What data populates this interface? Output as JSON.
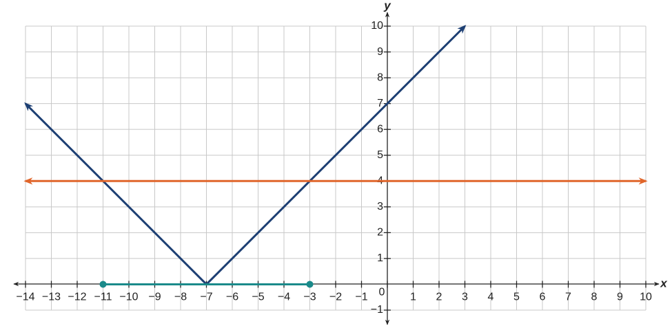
{
  "chart_data": {
    "type": "line",
    "x_label": "x",
    "y_label": "y",
    "xlim": [
      -14,
      10
    ],
    "ylim": [
      -1,
      10
    ],
    "xticks": [
      {
        "value": -14,
        "label": "−14"
      },
      {
        "value": -13,
        "label": "−13"
      },
      {
        "value": -12,
        "label": "−12"
      },
      {
        "value": -11,
        "label": "−11"
      },
      {
        "value": -10,
        "label": "−10"
      },
      {
        "value": -9,
        "label": "−9"
      },
      {
        "value": -8,
        "label": "−8"
      },
      {
        "value": -7,
        "label": "−7"
      },
      {
        "value": -6,
        "label": "−6"
      },
      {
        "value": -5,
        "label": "−5"
      },
      {
        "value": -4,
        "label": "−4"
      },
      {
        "value": -3,
        "label": "−3"
      },
      {
        "value": -2,
        "label": "−2"
      },
      {
        "value": -1,
        "label": "−1"
      },
      0,
      1,
      2,
      3,
      4,
      5,
      6,
      7,
      8,
      9,
      10
    ],
    "yticks": [
      {
        "value": -1,
        "label": "−1"
      },
      1,
      2,
      3,
      4,
      5,
      6,
      7,
      8,
      9,
      10
    ],
    "grid": true,
    "series": [
      {
        "color": "#1d3f73",
        "x": [
          -14,
          -7,
          3
        ],
        "values": [
          7,
          0,
          10
        ],
        "arrows": true,
        "markers": false
      },
      {
        "color": "#e0652a",
        "x": [
          -14,
          10
        ],
        "values": [
          4,
          4
        ],
        "arrows": true,
        "markers": false
      },
      {
        "color": "#1a8a8a",
        "x": [
          -11,
          -3
        ],
        "values": [
          0,
          0
        ],
        "arrows": false,
        "markers": true
      }
    ]
  }
}
